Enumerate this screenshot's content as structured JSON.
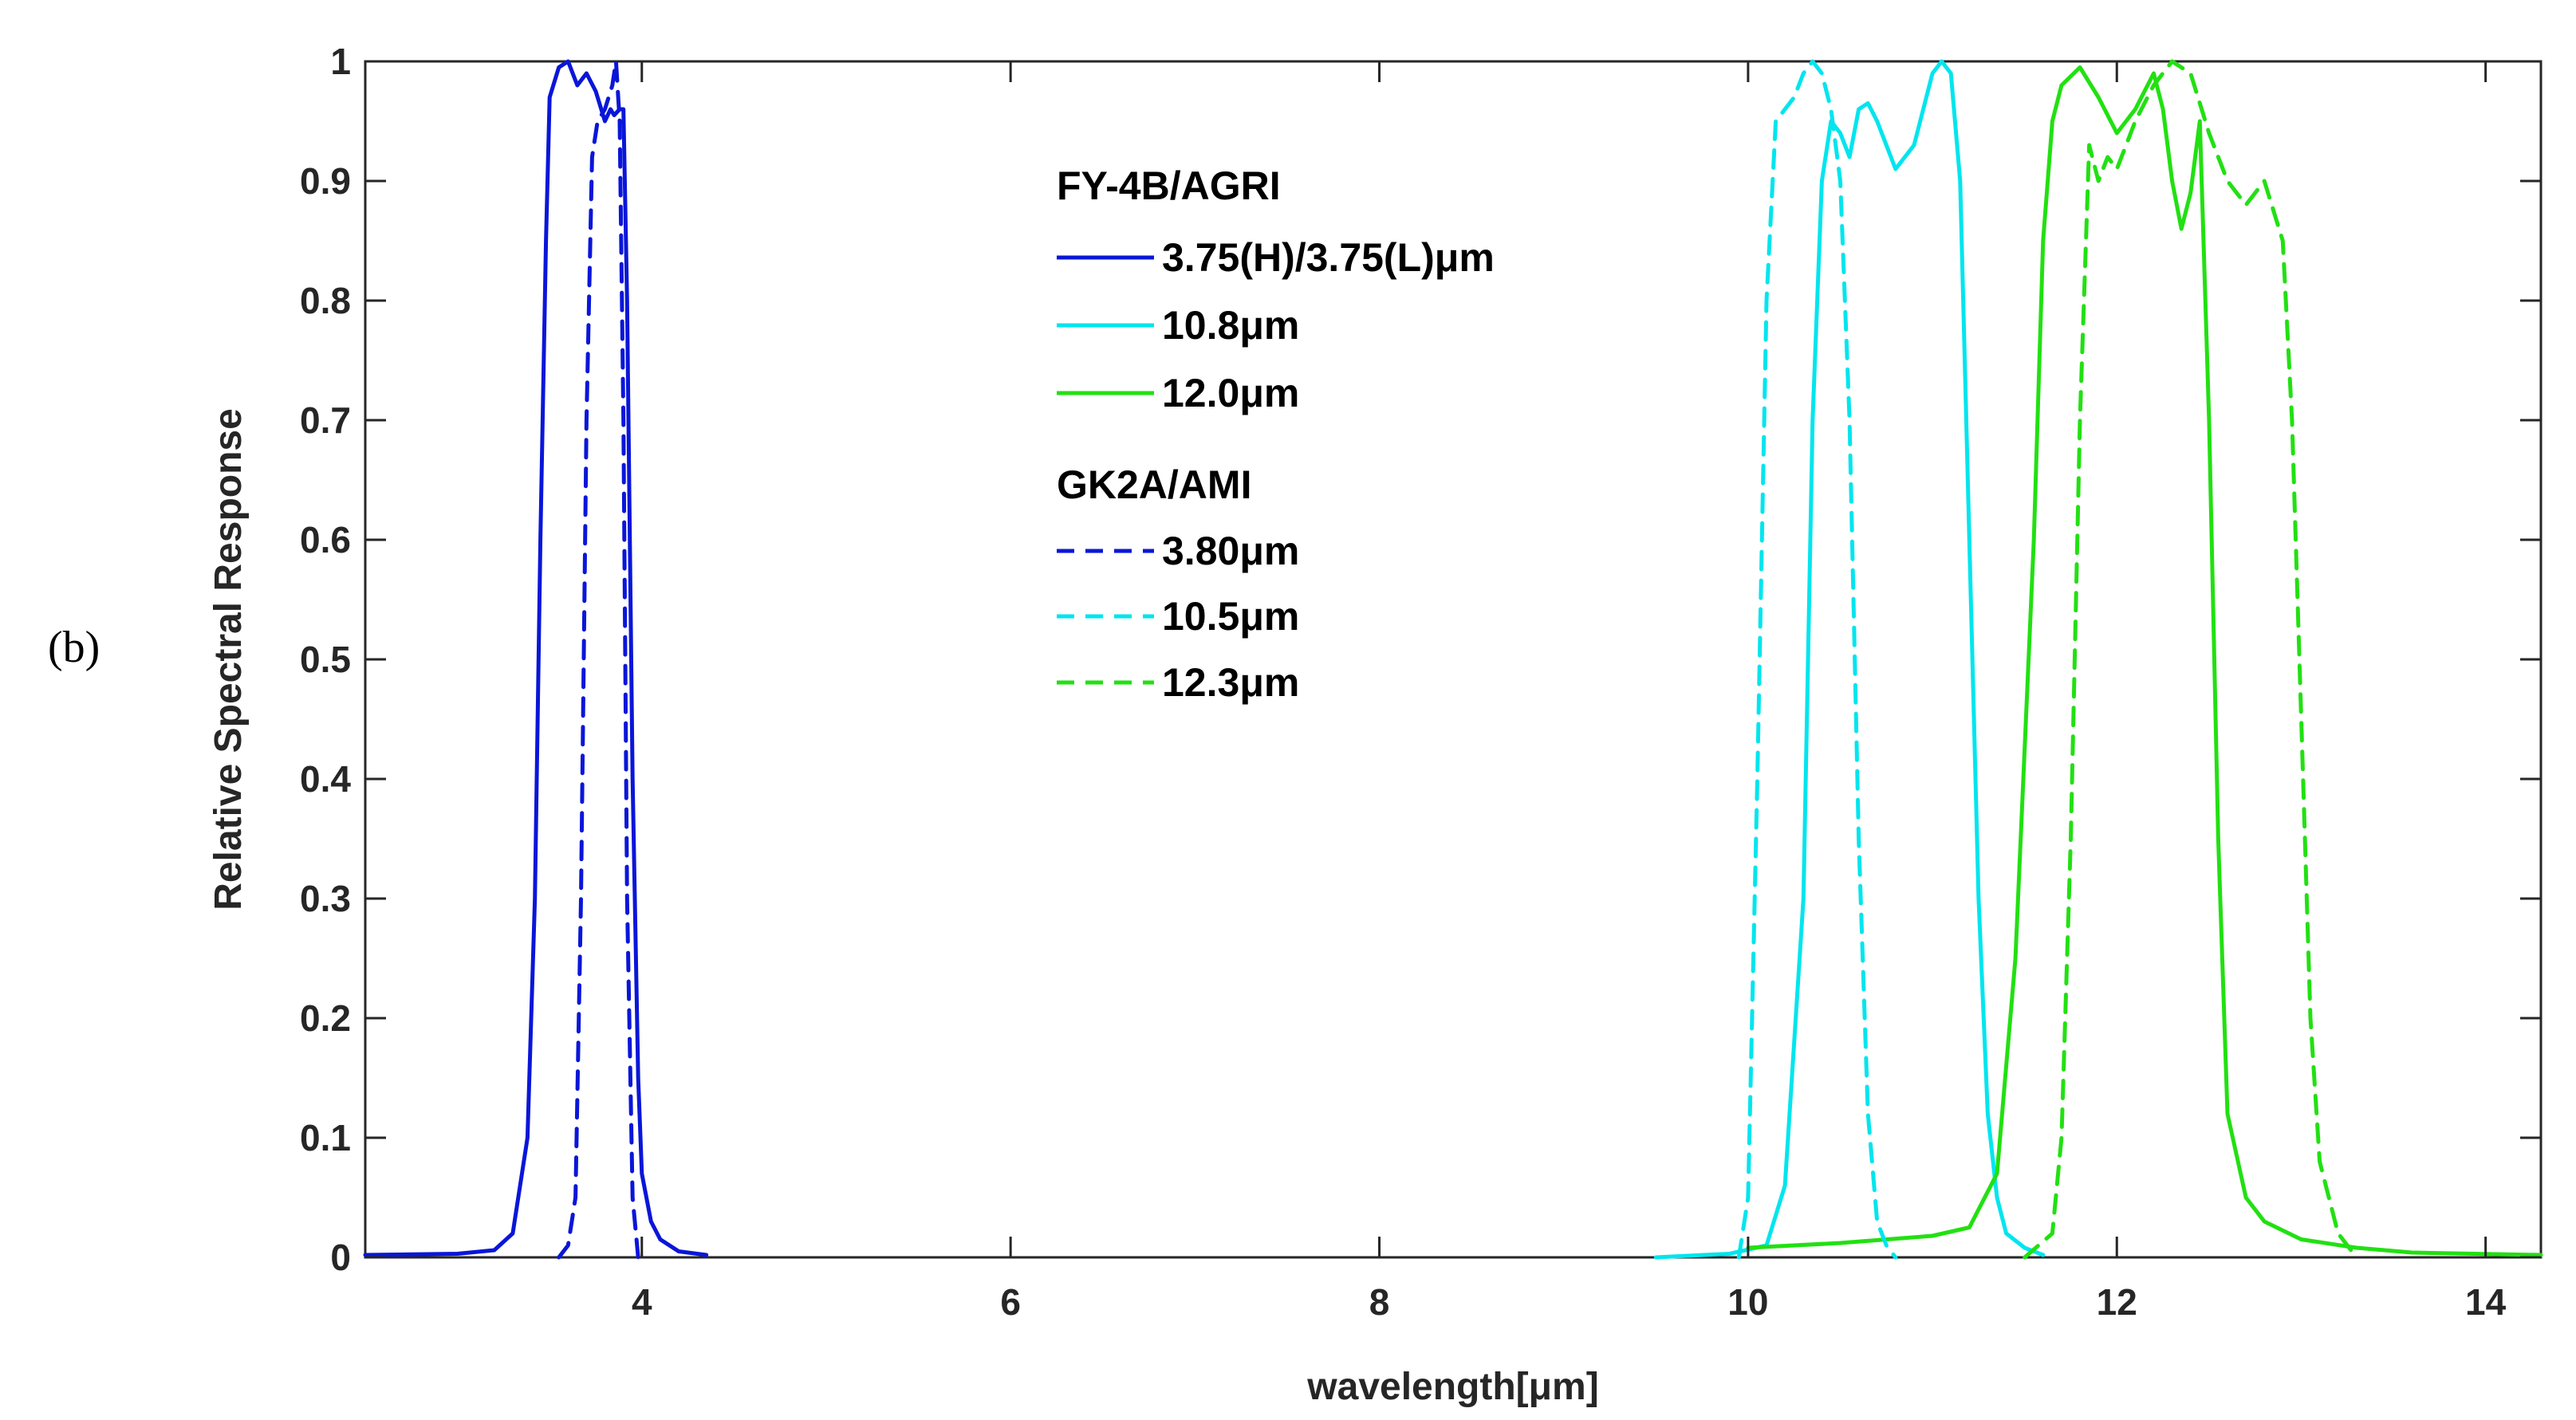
{
  "panel_label": "(b)",
  "chart_data": {
    "type": "line",
    "title": "",
    "xlabel": "wavelength[μm]",
    "ylabel": "Relative Spectral Response",
    "xlim": [
      2.5,
      14.3
    ],
    "ylim": [
      0,
      1
    ],
    "xticks": [
      4,
      6,
      8,
      10,
      12,
      14
    ],
    "yticks": [
      0,
      0.1,
      0.2,
      0.3,
      0.4,
      0.5,
      0.6,
      0.7,
      0.8,
      0.9,
      1
    ],
    "xtick_labels": [
      "4",
      "6",
      "8",
      "10",
      "12",
      "14"
    ],
    "ytick_labels": [
      "0",
      "0.1",
      "0.2",
      "0.3",
      "0.4",
      "0.5",
      "0.6",
      "0.7",
      "0.8",
      "0.9",
      "1"
    ],
    "grid": false,
    "legend_position": "upper-center",
    "legend_groups": [
      {
        "title": "FY-4B/AGRI",
        "entries": [
          {
            "label": "3.75(H)/3.75(L)μm",
            "series": 0
          },
          {
            "label": "10.8μm",
            "series": 1
          },
          {
            "label": "12.0μm",
            "series": 2
          }
        ]
      },
      {
        "title": "GK2A/AMI",
        "entries": [
          {
            "label": "3.80μm",
            "series": 3
          },
          {
            "label": "10.5μm",
            "series": 4
          },
          {
            "label": "12.3μm",
            "series": 5
          }
        ]
      }
    ],
    "series": [
      {
        "name": "FY-4B/AGRI 3.75(H)/3.75(L)μm",
        "color": "#0a16d8",
        "dash": "solid",
        "x": [
          2.5,
          3.0,
          3.2,
          3.3,
          3.38,
          3.42,
          3.45,
          3.48,
          3.5,
          3.55,
          3.6,
          3.65,
          3.7,
          3.75,
          3.8,
          3.83,
          3.85,
          3.88,
          3.9,
          3.92,
          3.95,
          3.98,
          4.0,
          4.05,
          4.1,
          4.2,
          4.35
        ],
        "y": [
          0.002,
          0.003,
          0.006,
          0.02,
          0.1,
          0.3,
          0.6,
          0.85,
          0.97,
          0.995,
          1.0,
          0.98,
          0.99,
          0.975,
          0.95,
          0.96,
          0.955,
          0.96,
          0.96,
          0.8,
          0.4,
          0.15,
          0.07,
          0.03,
          0.015,
          0.005,
          0.002
        ]
      },
      {
        "name": "FY-4B/AGRI 10.8μm",
        "color": "#00e5ee",
        "dash": "solid",
        "x": [
          9.5,
          9.9,
          10.1,
          10.2,
          10.3,
          10.35,
          10.4,
          10.45,
          10.5,
          10.55,
          10.6,
          10.65,
          10.7,
          10.8,
          10.9,
          11.0,
          11.05,
          11.1,
          11.15,
          11.2,
          11.25,
          11.3,
          11.35,
          11.4,
          11.5,
          11.6
        ],
        "y": [
          0.0,
          0.003,
          0.01,
          0.06,
          0.3,
          0.7,
          0.9,
          0.95,
          0.94,
          0.92,
          0.96,
          0.965,
          0.95,
          0.91,
          0.93,
          0.99,
          1.0,
          0.99,
          0.9,
          0.6,
          0.3,
          0.12,
          0.05,
          0.02,
          0.008,
          0.002
        ]
      },
      {
        "name": "FY-4B/AGRI 12.0μm",
        "color": "#22e012",
        "dash": "solid",
        "x": [
          10.0,
          10.5,
          11.0,
          11.2,
          11.35,
          11.45,
          11.55,
          11.6,
          11.65,
          11.7,
          11.8,
          11.9,
          12.0,
          12.1,
          12.2,
          12.25,
          12.3,
          12.35,
          12.4,
          12.45,
          12.5,
          12.55,
          12.6,
          12.7,
          12.8,
          13.0,
          13.3,
          13.6,
          14.3
        ],
        "y": [
          0.008,
          0.012,
          0.018,
          0.025,
          0.07,
          0.25,
          0.6,
          0.85,
          0.95,
          0.98,
          0.995,
          0.97,
          0.94,
          0.96,
          0.99,
          0.96,
          0.9,
          0.86,
          0.89,
          0.95,
          0.7,
          0.35,
          0.12,
          0.05,
          0.03,
          0.015,
          0.008,
          0.004,
          0.002
        ]
      },
      {
        "name": "GK2A/AMI 3.80μm",
        "color": "#0a16d8",
        "dash": "dashed",
        "x": [
          3.55,
          3.6,
          3.64,
          3.67,
          3.7,
          3.73,
          3.76,
          3.8,
          3.84,
          3.86,
          3.88,
          3.9,
          3.92,
          3.95,
          3.98
        ],
        "y": [
          0.0,
          0.01,
          0.05,
          0.3,
          0.7,
          0.92,
          0.95,
          0.96,
          0.98,
          1.0,
          0.95,
          0.7,
          0.3,
          0.05,
          0.0
        ]
      },
      {
        "name": "GK2A/AMI 10.5μm",
        "color": "#00e5ee",
        "dash": "dashed",
        "x": [
          9.95,
          10.0,
          10.05,
          10.1,
          10.15,
          10.2,
          10.25,
          10.3,
          10.35,
          10.4,
          10.45,
          10.5,
          10.55,
          10.6,
          10.65,
          10.7,
          10.75,
          10.8
        ],
        "y": [
          0.0,
          0.05,
          0.4,
          0.8,
          0.95,
          0.96,
          0.97,
          0.99,
          1.0,
          0.99,
          0.96,
          0.9,
          0.7,
          0.35,
          0.12,
          0.03,
          0.01,
          0.0
        ]
      },
      {
        "name": "GK2A/AMI 12.3μm",
        "color": "#22e012",
        "dash": "dashed",
        "x": [
          11.5,
          11.65,
          11.7,
          11.75,
          11.8,
          11.85,
          11.9,
          11.95,
          12.0,
          12.1,
          12.2,
          12.3,
          12.4,
          12.5,
          12.6,
          12.7,
          12.8,
          12.9,
          12.95,
          13.0,
          13.05,
          13.1,
          13.2,
          13.3
        ],
        "y": [
          0.0,
          0.02,
          0.1,
          0.35,
          0.7,
          0.93,
          0.9,
          0.92,
          0.91,
          0.95,
          0.98,
          1.0,
          0.99,
          0.94,
          0.9,
          0.88,
          0.9,
          0.85,
          0.7,
          0.45,
          0.2,
          0.08,
          0.02,
          0.0
        ]
      }
    ]
  }
}
